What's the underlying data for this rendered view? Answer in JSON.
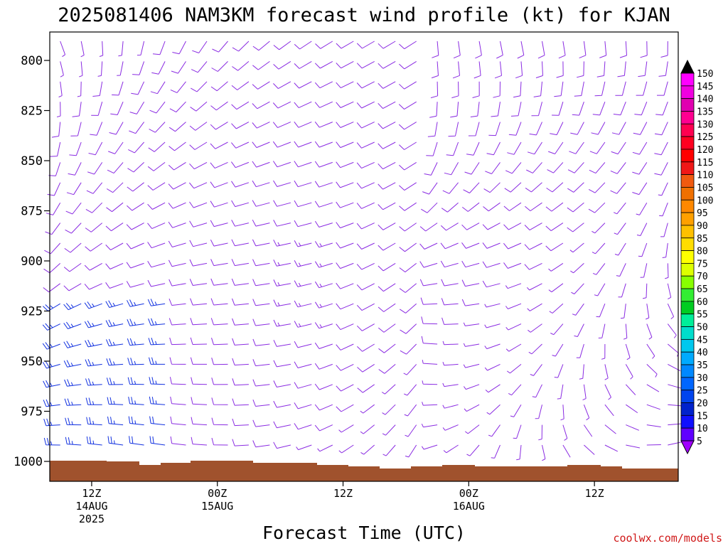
{
  "title": "2025081406 NAM3KM forecast wind profile (kt) for KJAN",
  "credit": "coolwx.com/models",
  "chart_data": {
    "type": "wind-barb time-height profile",
    "title": "2025081406 NAM3KM forecast wind profile (kt) for KJAN",
    "xlabel": "Forecast Time (UTC)",
    "ylabel": "",
    "y_ticks": [
      "800",
      "825",
      "850",
      "875",
      "900",
      "925",
      "950",
      "975",
      "1000"
    ],
    "y_tick_values": [
      800,
      825,
      850,
      875,
      900,
      925,
      950,
      975,
      1000
    ],
    "ylim": [
      782,
      1010
    ],
    "x_ticks": [
      {
        "hour": 6,
        "line1": "12Z",
        "line2": "14AUG",
        "line3": "2025"
      },
      {
        "hour": 24,
        "line1": "00Z",
        "line2": "15AUG",
        "line3": ""
      },
      {
        "hour": 42,
        "line1": "12Z",
        "line2": "",
        "line3": ""
      },
      {
        "hour": 60,
        "line1": "00Z",
        "line2": "16AUG",
        "line3": ""
      },
      {
        "hour": 78,
        "line1": "12Z",
        "line2": "",
        "line3": ""
      }
    ],
    "xlim": [
      0,
      90
    ],
    "units": "kt",
    "colorbar": {
      "labels": [
        "150",
        "145",
        "140",
        "135",
        "130",
        "125",
        "120",
        "115",
        "110",
        "105",
        "100",
        "95",
        "90",
        "85",
        "80",
        "75",
        "70",
        "65",
        "60",
        "55",
        "50",
        "45",
        "40",
        "35",
        "30",
        "25",
        "20",
        "15",
        "10",
        "5"
      ],
      "colors": [
        "#ff00ff",
        "#f000e0",
        "#e000b0",
        "#ff0090",
        "#ff0050",
        "#ff0020",
        "#ff0000",
        "#f01818",
        "#f05a10",
        "#f07000",
        "#ff8800",
        "#ffa000",
        "#ffc000",
        "#ffdd00",
        "#ffff00",
        "#ddff00",
        "#88ff00",
        "#33ee33",
        "#00cc22",
        "#00ee99",
        "#00ddcc",
        "#00c8ee",
        "#00aaff",
        "#0088ff",
        "#0066ff",
        "#0044ee",
        "#0022cc",
        "#1010ff",
        "#6000ff",
        "#9000ff"
      ],
      "top_arrow_color": "#000000",
      "bottom_arrow_color": "#a000ff"
    },
    "ground_color": "#a0522d",
    "barb_color": "#8a2be2",
    "strong_barb_color": "#1030e0"
  }
}
